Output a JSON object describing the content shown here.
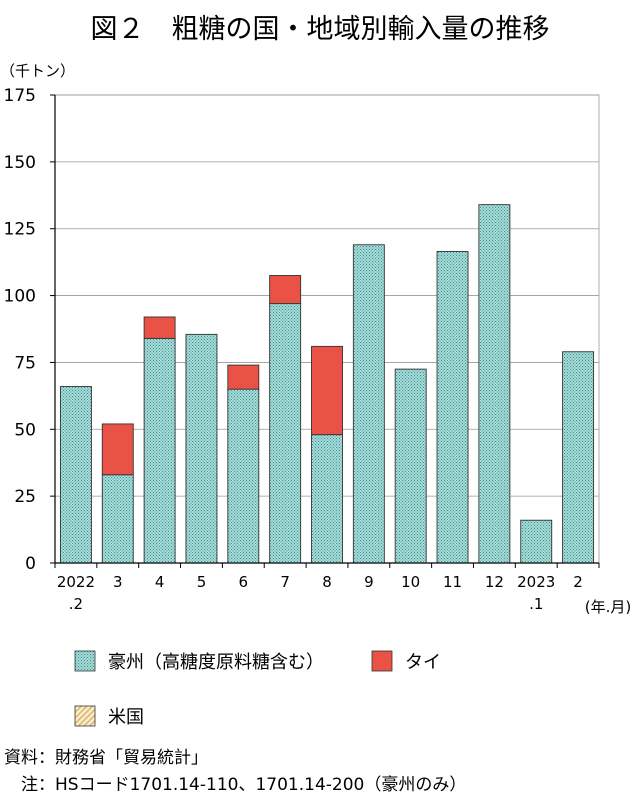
{
  "chart_data": {
    "type": "bar",
    "stacked": true,
    "title": "図２　粗糖の国・地域別輸入量の推移",
    "unit_label": "（千トン）",
    "xlabel_unit": "(年.月)",
    "ylim": [
      0,
      175
    ],
    "yticks": [
      0,
      25,
      50,
      75,
      100,
      125,
      150,
      175
    ],
    "grid": true,
    "categories": [
      [
        "2022",
        ".2"
      ],
      [
        "3"
      ],
      [
        "4"
      ],
      [
        "5"
      ],
      [
        "6"
      ],
      [
        "7"
      ],
      [
        "8"
      ],
      [
        "9"
      ],
      [
        "10"
      ],
      [
        "11"
      ],
      [
        "12"
      ],
      [
        "2023",
        ".1"
      ],
      [
        "2"
      ]
    ],
    "series": [
      {
        "name": "豪州（高糖度原料糖含む）",
        "color": "#93d2cf",
        "values": [
          66,
          33,
          84,
          85.5,
          65,
          97,
          48,
          119,
          72.5,
          116.5,
          134,
          16,
          79
        ]
      },
      {
        "name": "タイ",
        "color": "#ea5245",
        "values": [
          0,
          19,
          8,
          0,
          9,
          10.5,
          33,
          0,
          0,
          0,
          0,
          0,
          0
        ]
      },
      {
        "name": "米国",
        "color": "#f5d9a3",
        "values": [
          0,
          0,
          0,
          0,
          0,
          0,
          0,
          0,
          0,
          0,
          0,
          0,
          0
        ]
      }
    ],
    "legend_position": "bottom"
  },
  "footer": {
    "source": "資料：財務省「貿易統計」",
    "note": "　注：HSコード1701.14-110、1701.14-200（豪州のみ）"
  }
}
